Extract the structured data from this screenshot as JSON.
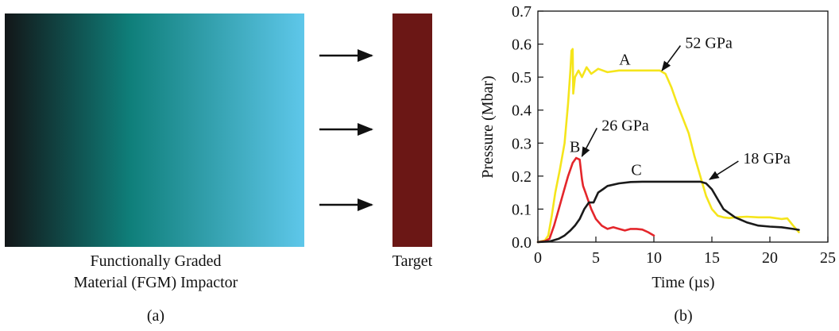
{
  "panel_a": {
    "impactor_label_line1": "Functionally Graded",
    "impactor_label_line2": "Material (FGM) Impactor",
    "target_label": "Target",
    "caption": "(a)",
    "gradient_colors": [
      "#121618",
      "#0f7f7a",
      "#5ec7ea"
    ],
    "target_color": "#6b1715",
    "arrow_count": 3
  },
  "panel_b": {
    "caption": "(b)"
  },
  "chart_data": {
    "type": "line",
    "xlabel": "Time (µs)",
    "ylabel": "Pressure (Mbar)",
    "xlim": [
      0,
      25
    ],
    "ylim": [
      0,
      0.7
    ],
    "xticks": [
      0,
      5,
      10,
      15,
      20,
      25
    ],
    "yticks": [
      0.0,
      0.1,
      0.2,
      0.3,
      0.4,
      0.5,
      0.6,
      0.7
    ],
    "xtick_labels": [
      "0",
      "5",
      "10",
      "15",
      "20",
      "25"
    ],
    "ytick_labels": [
      "0.0",
      "0.1",
      "0.2",
      "0.3",
      "0.4",
      "0.5",
      "0.6",
      "0.7"
    ],
    "grid": false,
    "series": [
      {
        "name": "A",
        "color": "#f5e51b",
        "x": [
          0,
          0.6,
          0.9,
          1.2,
          1.5,
          1.9,
          2.3,
          2.6,
          2.8,
          2.9,
          3.0,
          3.05,
          3.2,
          3.5,
          3.8,
          4.2,
          4.6,
          5.2,
          6,
          7,
          8,
          9,
          10,
          10.5,
          11,
          11.5,
          12,
          13,
          13.5,
          14,
          14.5,
          15,
          15.5,
          16,
          16.5,
          17,
          18,
          19,
          20,
          21,
          21.5,
          22,
          22.5
        ],
        "y": [
          0,
          0.005,
          0.02,
          0.08,
          0.15,
          0.22,
          0.3,
          0.42,
          0.52,
          0.58,
          0.585,
          0.45,
          0.5,
          0.52,
          0.5,
          0.53,
          0.51,
          0.525,
          0.515,
          0.52,
          0.52,
          0.52,
          0.52,
          0.52,
          0.51,
          0.47,
          0.42,
          0.33,
          0.26,
          0.2,
          0.14,
          0.1,
          0.08,
          0.075,
          0.073,
          0.075,
          0.077,
          0.075,
          0.075,
          0.07,
          0.072,
          0.05,
          0.03
        ]
      },
      {
        "name": "B",
        "color": "#e4262b",
        "x": [
          0,
          0.6,
          1.0,
          1.4,
          1.8,
          2.2,
          2.6,
          3.0,
          3.3,
          3.6,
          3.8,
          3.9,
          4.1,
          4.3,
          4.6,
          5.0,
          5.5,
          6.0,
          6.5,
          7.0,
          7.5,
          8.0,
          8.5,
          9.0,
          9.5,
          10.0
        ],
        "y": [
          0,
          0.003,
          0.01,
          0.05,
          0.1,
          0.15,
          0.2,
          0.24,
          0.255,
          0.25,
          0.19,
          0.17,
          0.15,
          0.13,
          0.1,
          0.07,
          0.05,
          0.04,
          0.045,
          0.04,
          0.035,
          0.04,
          0.04,
          0.038,
          0.03,
          0.02
        ]
      },
      {
        "name": "C",
        "color": "#1a1a1a",
        "x": [
          0,
          1.0,
          1.8,
          2.3,
          2.8,
          3.2,
          3.6,
          4.0,
          4.4,
          4.8,
          5.2,
          5.6,
          6.0,
          7.0,
          8.0,
          9.0,
          10.0,
          11.0,
          12.0,
          13.0,
          14.0,
          14.5,
          15.0,
          15.5,
          16.0,
          17.0,
          18.0,
          19.0,
          20.0,
          21.0,
          22.0,
          22.5
        ],
        "y": [
          0,
          0.002,
          0.01,
          0.02,
          0.035,
          0.05,
          0.07,
          0.1,
          0.12,
          0.12,
          0.15,
          0.16,
          0.17,
          0.178,
          0.182,
          0.183,
          0.183,
          0.183,
          0.183,
          0.183,
          0.183,
          0.178,
          0.16,
          0.13,
          0.1,
          0.075,
          0.06,
          0.05,
          0.047,
          0.045,
          0.04,
          0.037
        ]
      }
    ],
    "annotations": [
      {
        "text": "A",
        "x": 7.5,
        "y": 0.555
      },
      {
        "text": "B",
        "x": 3.2,
        "y": 0.29
      },
      {
        "text": "C",
        "x": 8.5,
        "y": 0.22
      },
      {
        "text": "52 GPa",
        "x": 12.7,
        "y": 0.605,
        "arrow_to": [
          10.7,
          0.52
        ]
      },
      {
        "text": "26 GPa",
        "x": 5.5,
        "y": 0.355,
        "arrow_to": [
          3.8,
          0.26
        ]
      },
      {
        "text": "18 GPa",
        "x": 17.7,
        "y": 0.255,
        "arrow_to": [
          14.8,
          0.19
        ]
      }
    ]
  }
}
